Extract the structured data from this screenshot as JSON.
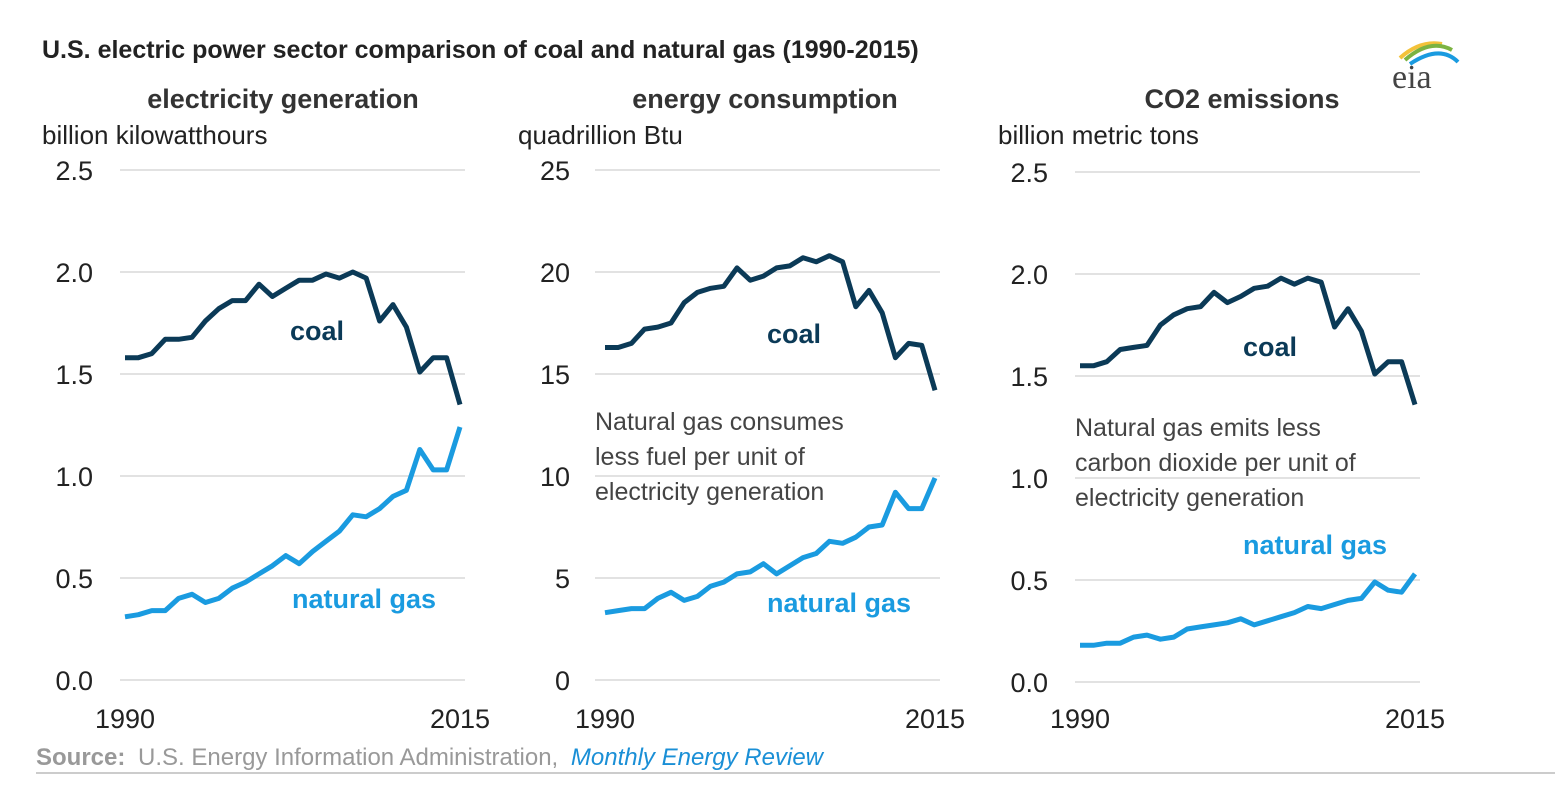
{
  "title": "U.S. electric power sector comparison of coal and natural gas (1990-2015)",
  "logo_text": "eia",
  "source": {
    "label": "Source:",
    "text": "U.S. Energy Information Administration,",
    "link": "Monthly Energy Review"
  },
  "colors": {
    "coal": "#0b3a57",
    "natural_gas": "#1a9be0",
    "source_link": "#1a8fd6"
  },
  "chart_data": [
    {
      "type": "line",
      "title": "electricity generation",
      "ylabel": "billion kilowatthours",
      "ylim": [
        0,
        2.5
      ],
      "yticks": [
        "0.0",
        "0.5",
        "1.0",
        "1.5",
        "2.0",
        "2.5"
      ],
      "xticks": [
        "1990",
        "2015"
      ],
      "x": [
        1990,
        1991,
        1992,
        1993,
        1994,
        1995,
        1996,
        1997,
        1998,
        1999,
        2000,
        2001,
        2002,
        2003,
        2004,
        2005,
        2006,
        2007,
        2008,
        2009,
        2010,
        2011,
        2012,
        2013,
        2014,
        2015
      ],
      "grid": true,
      "series": [
        {
          "name": "coal",
          "values": [
            1.58,
            1.58,
            1.6,
            1.67,
            1.67,
            1.68,
            1.76,
            1.82,
            1.86,
            1.86,
            1.94,
            1.88,
            1.92,
            1.96,
            1.96,
            1.99,
            1.97,
            2.0,
            1.97,
            1.76,
            1.84,
            1.73,
            1.51,
            1.58,
            1.58,
            1.35
          ]
        },
        {
          "name": "natural gas",
          "values": [
            0.31,
            0.32,
            0.34,
            0.34,
            0.4,
            0.42,
            0.38,
            0.4,
            0.45,
            0.48,
            0.52,
            0.56,
            0.61,
            0.57,
            0.63,
            0.68,
            0.73,
            0.81,
            0.8,
            0.84,
            0.9,
            0.93,
            1.13,
            1.03,
            1.03,
            1.24
          ]
        }
      ],
      "annotation": []
    },
    {
      "type": "line",
      "title": "energy consumption",
      "ylabel": "quadrillion Btu",
      "ylim": [
        0,
        25
      ],
      "yticks": [
        "0",
        "5",
        "10",
        "15",
        "20",
        "25"
      ],
      "xticks": [
        "1990",
        "2015"
      ],
      "x": [
        1990,
        1991,
        1992,
        1993,
        1994,
        1995,
        1996,
        1997,
        1998,
        1999,
        2000,
        2001,
        2002,
        2003,
        2004,
        2005,
        2006,
        2007,
        2008,
        2009,
        2010,
        2011,
        2012,
        2013,
        2014,
        2015
      ],
      "grid": true,
      "series": [
        {
          "name": "coal",
          "values": [
            16.3,
            16.3,
            16.5,
            17.2,
            17.3,
            17.5,
            18.5,
            19.0,
            19.2,
            19.3,
            20.2,
            19.6,
            19.8,
            20.2,
            20.3,
            20.7,
            20.5,
            20.8,
            20.5,
            18.3,
            19.1,
            18.0,
            15.8,
            16.5,
            16.4,
            14.2
          ]
        },
        {
          "name": "natural gas",
          "values": [
            3.3,
            3.4,
            3.5,
            3.5,
            4.0,
            4.3,
            3.9,
            4.1,
            4.6,
            4.8,
            5.2,
            5.3,
            5.7,
            5.2,
            5.6,
            6.0,
            6.2,
            6.8,
            6.7,
            7.0,
            7.5,
            7.6,
            9.2,
            8.4,
            8.4,
            9.9
          ]
        }
      ],
      "annotation": [
        "Natural gas consumes",
        "less fuel per unit of",
        "electricity generation"
      ]
    },
    {
      "type": "line",
      "title": "CO2 emissions",
      "ylabel": "billion metric tons",
      "ylim": [
        0,
        2.5
      ],
      "yticks": [
        "0.0",
        "0.5",
        "1.0",
        "1.5",
        "2.0",
        "2.5"
      ],
      "xticks": [
        "1990",
        "2015"
      ],
      "x": [
        1990,
        1991,
        1992,
        1993,
        1994,
        1995,
        1996,
        1997,
        1998,
        1999,
        2000,
        2001,
        2002,
        2003,
        2004,
        2005,
        2006,
        2007,
        2008,
        2009,
        2010,
        2011,
        2012,
        2013,
        2014,
        2015
      ],
      "grid": true,
      "series": [
        {
          "name": "coal",
          "values": [
            1.55,
            1.55,
            1.57,
            1.63,
            1.64,
            1.65,
            1.75,
            1.8,
            1.83,
            1.84,
            1.91,
            1.86,
            1.89,
            1.93,
            1.94,
            1.98,
            1.95,
            1.98,
            1.96,
            1.74,
            1.83,
            1.72,
            1.51,
            1.57,
            1.57,
            1.36
          ]
        },
        {
          "name": "natural gas",
          "values": [
            0.18,
            0.18,
            0.19,
            0.19,
            0.22,
            0.23,
            0.21,
            0.22,
            0.26,
            0.27,
            0.28,
            0.29,
            0.31,
            0.28,
            0.3,
            0.32,
            0.34,
            0.37,
            0.36,
            0.38,
            0.4,
            0.41,
            0.49,
            0.45,
            0.44,
            0.53
          ]
        }
      ],
      "annotation": [
        "Natural gas emits less",
        "carbon dioxide per unit of",
        "electricity generation"
      ]
    }
  ]
}
